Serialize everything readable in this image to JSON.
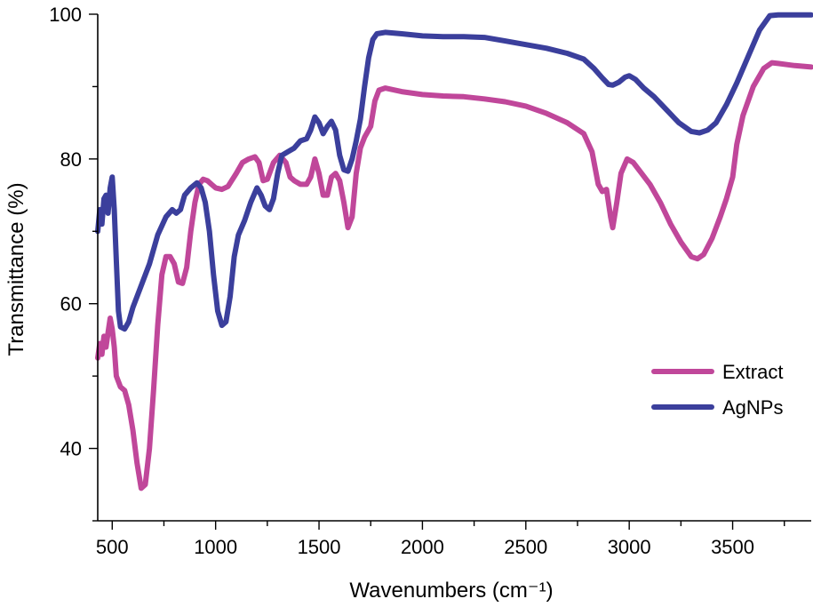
{
  "chart_data": {
    "type": "line",
    "title": "",
    "xlabel": "Wavenumbers (cm⁻¹)",
    "ylabel": "Transmittance (%)",
    "xlim": [
      430,
      3880
    ],
    "ylim": [
      30,
      100
    ],
    "xticks": [
      500,
      1000,
      1500,
      2000,
      2500,
      3000,
      3500
    ],
    "yticks": [
      40,
      60,
      80,
      100
    ],
    "grid": false,
    "legend_position": "right",
    "series": [
      {
        "name": "Extract",
        "color": "#c0479a",
        "points": [
          [
            430,
            52.5
          ],
          [
            440,
            54.5
          ],
          [
            450,
            53.0
          ],
          [
            460,
            55.5
          ],
          [
            470,
            54.0
          ],
          [
            480,
            56.0
          ],
          [
            490,
            58.0
          ],
          [
            500,
            56.5
          ],
          [
            510,
            54.0
          ],
          [
            520,
            50.0
          ],
          [
            540,
            48.5
          ],
          [
            560,
            48.0
          ],
          [
            580,
            46.0
          ],
          [
            600,
            42.5
          ],
          [
            620,
            38.0
          ],
          [
            640,
            34.5
          ],
          [
            660,
            35.0
          ],
          [
            680,
            40.0
          ],
          [
            700,
            48.0
          ],
          [
            720,
            57.0
          ],
          [
            740,
            64.0
          ],
          [
            760,
            66.5
          ],
          [
            780,
            66.5
          ],
          [
            800,
            65.5
          ],
          [
            820,
            63.0
          ],
          [
            840,
            62.8
          ],
          [
            860,
            65.0
          ],
          [
            880,
            70.0
          ],
          [
            900,
            74.0
          ],
          [
            920,
            76.5
          ],
          [
            940,
            77.2
          ],
          [
            960,
            77.0
          ],
          [
            980,
            76.5
          ],
          [
            1000,
            76.0
          ],
          [
            1030,
            75.8
          ],
          [
            1060,
            76.2
          ],
          [
            1100,
            78.0
          ],
          [
            1130,
            79.5
          ],
          [
            1160,
            80.0
          ],
          [
            1190,
            80.3
          ],
          [
            1210,
            79.5
          ],
          [
            1230,
            77.0
          ],
          [
            1250,
            77.2
          ],
          [
            1280,
            79.5
          ],
          [
            1310,
            80.5
          ],
          [
            1340,
            79.5
          ],
          [
            1360,
            77.5
          ],
          [
            1380,
            77.0
          ],
          [
            1410,
            76.5
          ],
          [
            1440,
            76.5
          ],
          [
            1460,
            77.5
          ],
          [
            1480,
            80.0
          ],
          [
            1500,
            78.0
          ],
          [
            1520,
            75.0
          ],
          [
            1540,
            75.0
          ],
          [
            1560,
            77.5
          ],
          [
            1580,
            78.0
          ],
          [
            1600,
            77.0
          ],
          [
            1620,
            74.0
          ],
          [
            1640,
            70.5
          ],
          [
            1660,
            72.0
          ],
          [
            1680,
            78.0
          ],
          [
            1700,
            81.5
          ],
          [
            1720,
            83.0
          ],
          [
            1750,
            84.5
          ],
          [
            1770,
            88.0
          ],
          [
            1790,
            89.5
          ],
          [
            1820,
            89.8
          ],
          [
            1900,
            89.3
          ],
          [
            2000,
            88.9
          ],
          [
            2100,
            88.7
          ],
          [
            2200,
            88.6
          ],
          [
            2300,
            88.3
          ],
          [
            2400,
            87.9
          ],
          [
            2500,
            87.3
          ],
          [
            2600,
            86.3
          ],
          [
            2700,
            85.0
          ],
          [
            2780,
            83.5
          ],
          [
            2820,
            81.0
          ],
          [
            2850,
            76.5
          ],
          [
            2870,
            75.5
          ],
          [
            2890,
            75.8
          ],
          [
            2910,
            72.0
          ],
          [
            2920,
            70.5
          ],
          [
            2940,
            74.0
          ],
          [
            2960,
            78.0
          ],
          [
            2990,
            80.0
          ],
          [
            3020,
            79.5
          ],
          [
            3060,
            78.0
          ],
          [
            3100,
            76.5
          ],
          [
            3150,
            74.0
          ],
          [
            3200,
            71.0
          ],
          [
            3250,
            68.5
          ],
          [
            3300,
            66.5
          ],
          [
            3330,
            66.2
          ],
          [
            3360,
            66.8
          ],
          [
            3400,
            69.0
          ],
          [
            3440,
            72.0
          ],
          [
            3470,
            74.5
          ],
          [
            3500,
            77.5
          ],
          [
            3520,
            82.0
          ],
          [
            3550,
            86.0
          ],
          [
            3600,
            90.0
          ],
          [
            3650,
            92.5
          ],
          [
            3690,
            93.3
          ],
          [
            3720,
            93.2
          ],
          [
            3800,
            92.9
          ],
          [
            3880,
            92.7
          ]
        ]
      },
      {
        "name": "AgNPs",
        "color": "#3b3f9c",
        "points": [
          [
            430,
            70.0
          ],
          [
            440,
            73.0
          ],
          [
            450,
            71.0
          ],
          [
            460,
            74.5
          ],
          [
            470,
            75.0
          ],
          [
            480,
            72.5
          ],
          [
            490,
            76.0
          ],
          [
            500,
            77.5
          ],
          [
            510,
            73.0
          ],
          [
            520,
            66.0
          ],
          [
            530,
            59.0
          ],
          [
            540,
            56.8
          ],
          [
            560,
            56.5
          ],
          [
            580,
            57.5
          ],
          [
            600,
            59.5
          ],
          [
            640,
            62.5
          ],
          [
            680,
            65.5
          ],
          [
            720,
            69.5
          ],
          [
            760,
            72.0
          ],
          [
            790,
            73.0
          ],
          [
            810,
            72.5
          ],
          [
            830,
            73.0
          ],
          [
            850,
            75.0
          ],
          [
            880,
            76.0
          ],
          [
            910,
            76.7
          ],
          [
            930,
            76.0
          ],
          [
            950,
            74.0
          ],
          [
            970,
            70.0
          ],
          [
            990,
            64.0
          ],
          [
            1010,
            59.0
          ],
          [
            1030,
            57.0
          ],
          [
            1050,
            57.5
          ],
          [
            1070,
            61.0
          ],
          [
            1090,
            66.5
          ],
          [
            1110,
            69.5
          ],
          [
            1140,
            71.5
          ],
          [
            1170,
            74.0
          ],
          [
            1200,
            76.0
          ],
          [
            1220,
            75.0
          ],
          [
            1240,
            73.5
          ],
          [
            1260,
            73.0
          ],
          [
            1280,
            74.5
          ],
          [
            1300,
            78.0
          ],
          [
            1320,
            80.5
          ],
          [
            1350,
            81.0
          ],
          [
            1380,
            81.5
          ],
          [
            1410,
            82.5
          ],
          [
            1440,
            82.8
          ],
          [
            1460,
            84.0
          ],
          [
            1480,
            85.8
          ],
          [
            1500,
            85.0
          ],
          [
            1520,
            83.5
          ],
          [
            1540,
            84.5
          ],
          [
            1560,
            85.2
          ],
          [
            1580,
            84.0
          ],
          [
            1600,
            80.5
          ],
          [
            1620,
            78.5
          ],
          [
            1640,
            78.3
          ],
          [
            1660,
            80.0
          ],
          [
            1680,
            82.5
          ],
          [
            1700,
            85.5
          ],
          [
            1720,
            90.0
          ],
          [
            1740,
            94.0
          ],
          [
            1760,
            96.5
          ],
          [
            1780,
            97.3
          ],
          [
            1820,
            97.5
          ],
          [
            1900,
            97.3
          ],
          [
            2000,
            97.0
          ],
          [
            2100,
            96.9
          ],
          [
            2200,
            96.9
          ],
          [
            2300,
            96.8
          ],
          [
            2400,
            96.3
          ],
          [
            2500,
            95.8
          ],
          [
            2600,
            95.3
          ],
          [
            2700,
            94.6
          ],
          [
            2780,
            93.8
          ],
          [
            2830,
            92.5
          ],
          [
            2870,
            91.2
          ],
          [
            2900,
            90.3
          ],
          [
            2920,
            90.2
          ],
          [
            2950,
            90.6
          ],
          [
            2980,
            91.3
          ],
          [
            3000,
            91.5
          ],
          [
            3030,
            91.0
          ],
          [
            3070,
            89.8
          ],
          [
            3120,
            88.6
          ],
          [
            3180,
            86.8
          ],
          [
            3240,
            85.0
          ],
          [
            3300,
            83.8
          ],
          [
            3340,
            83.6
          ],
          [
            3380,
            84.0
          ],
          [
            3420,
            85.0
          ],
          [
            3470,
            87.5
          ],
          [
            3520,
            90.5
          ],
          [
            3580,
            94.5
          ],
          [
            3630,
            97.8
          ],
          [
            3680,
            99.8
          ],
          [
            3720,
            99.9
          ],
          [
            3880,
            99.9
          ]
        ]
      }
    ]
  }
}
